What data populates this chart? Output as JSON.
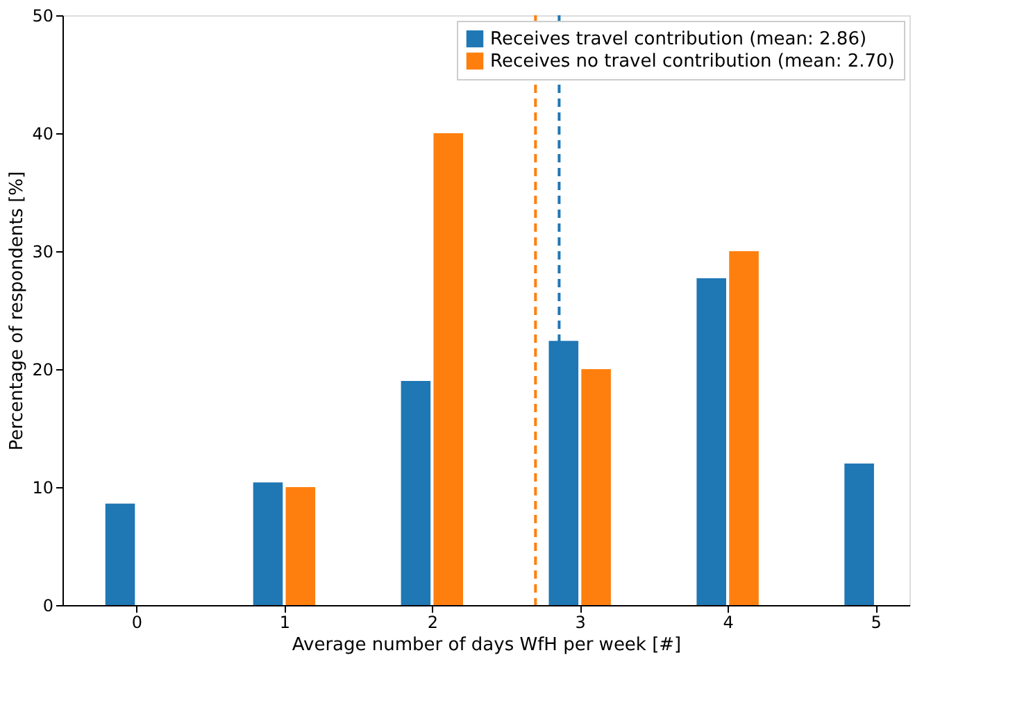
{
  "chart_data": {
    "type": "bar",
    "xlabel": "Average number of days WfH per week [#]",
    "ylabel": "Percentage of respondents [%]",
    "x": [
      0,
      1,
      2,
      3,
      4,
      5
    ],
    "series": [
      {
        "name": "Receives travel contribution (mean: 2.86)",
        "color": "#1f77b4",
        "values": [
          8.6,
          10.4,
          19.0,
          22.4,
          27.7,
          12.0
        ]
      },
      {
        "name": "Receives no travel contribution (mean: 2.70)",
        "color": "#ff7f0e",
        "values": [
          null,
          10.0,
          40.0,
          20.0,
          30.0,
          null
        ]
      }
    ],
    "ref_lines": [
      {
        "axis": "x",
        "value": 2.86,
        "color": "#1f77b4",
        "line_style": "dashed"
      },
      {
        "axis": "x",
        "value": 2.7,
        "color": "#ff7f0e",
        "line_style": "dashed"
      }
    ],
    "xlim": [
      -0.5,
      5.23
    ],
    "xticks": [
      0,
      1,
      2,
      3,
      4,
      5
    ],
    "ylim": [
      0,
      50
    ],
    "yticks": [
      0,
      10,
      20,
      30,
      40,
      50
    ],
    "grid": false,
    "legend": "top right"
  }
}
